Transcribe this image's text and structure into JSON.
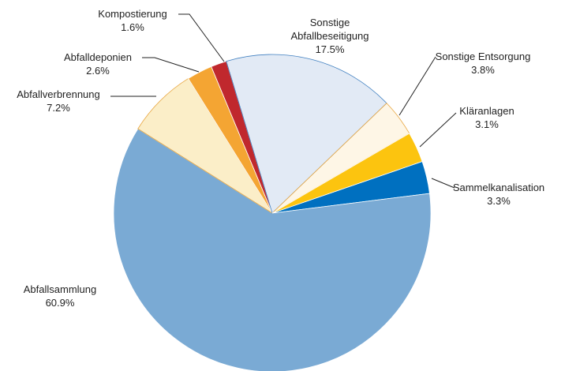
{
  "chart_data": {
    "type": "pie",
    "categories": [
      "Sammelkanalisation",
      "Abfallsammlung",
      "Abfallverbrennung",
      "Abfalldeponien",
      "Kompostierung",
      "Sonstige Abfallbeseitigung",
      "Sonstige Entsorgung",
      "Kläranlagen"
    ],
    "values": [
      3.3,
      60.9,
      7.2,
      2.6,
      1.6,
      17.5,
      3.8,
      3.1
    ],
    "value_labels": [
      "3.3%",
      "60.9%",
      "7.2%",
      "2.6%",
      "1.6%",
      "17.5%",
      "3.8%",
      "3.1%"
    ],
    "colors": [
      "#0070c0",
      "#7aaad4",
      "#fbeec8",
      "#f4a533",
      "#c0282d",
      "#e2eaf5",
      "#fef6e6",
      "#fcc40f"
    ]
  }
}
